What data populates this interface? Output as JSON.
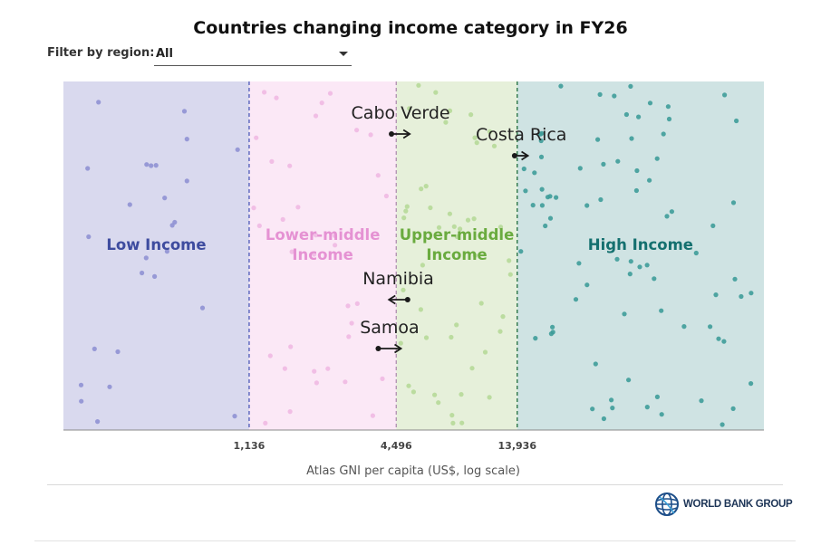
{
  "header": {
    "title": "Countries changing income category in FY26"
  },
  "filter": {
    "label": "Filter by region:",
    "value": "All"
  },
  "brand": {
    "logo_text": "WORLD BANK GROUP",
    "logo_icon": "globe-icon"
  },
  "colors": {
    "low": "#d9d9ee",
    "lower_middle": "#fbe8f6",
    "upper_middle": "#e6f0da",
    "high": "#cfe3e3",
    "low_label": "#3e4c9f",
    "lower_middle_label": "#e592d3",
    "upper_middle_label": "#6aab3f",
    "high_label": "#14706f",
    "low_dot": "#8f91d3",
    "lower_middle_dot": "#f0b9e3",
    "upper_middle_dot": "#b6d998",
    "high_dot": "#3e9c99"
  },
  "chart_data": {
    "type": "scatter",
    "title": "Countries changing income category in FY26",
    "xlabel": "Atlas GNI per capita (US$, log scale)",
    "x_scale": "log",
    "xlim": [
      200,
      140000
    ],
    "thresholds": [
      {
        "value": 1136,
        "label": "1,136"
      },
      {
        "value": 4496,
        "label": "4,496"
      },
      {
        "value": 13936,
        "label": "13,936"
      }
    ],
    "categories": [
      {
        "name": "Low Income",
        "lines": [
          "Low Income"
        ]
      },
      {
        "name": "Lower-middle Income",
        "lines": [
          "Lower-middle",
          "Income"
        ]
      },
      {
        "name": "Upper-middle Income",
        "lines": [
          "Upper-middle",
          "Income"
        ]
      },
      {
        "name": "High Income",
        "lines": [
          "High Income"
        ]
      }
    ],
    "moves": [
      {
        "country": "Cabo Verde",
        "from": 4300,
        "to": 5100,
        "direction": "up"
      },
      {
        "country": "Costa Rica",
        "from": 13600,
        "to": 15400,
        "direction": "up"
      },
      {
        "country": "Namibia",
        "from": 5000,
        "to": 4200,
        "direction": "down"
      },
      {
        "country": "Samoa",
        "from": 3800,
        "to": 4700,
        "direction": "up"
      }
    ]
  }
}
